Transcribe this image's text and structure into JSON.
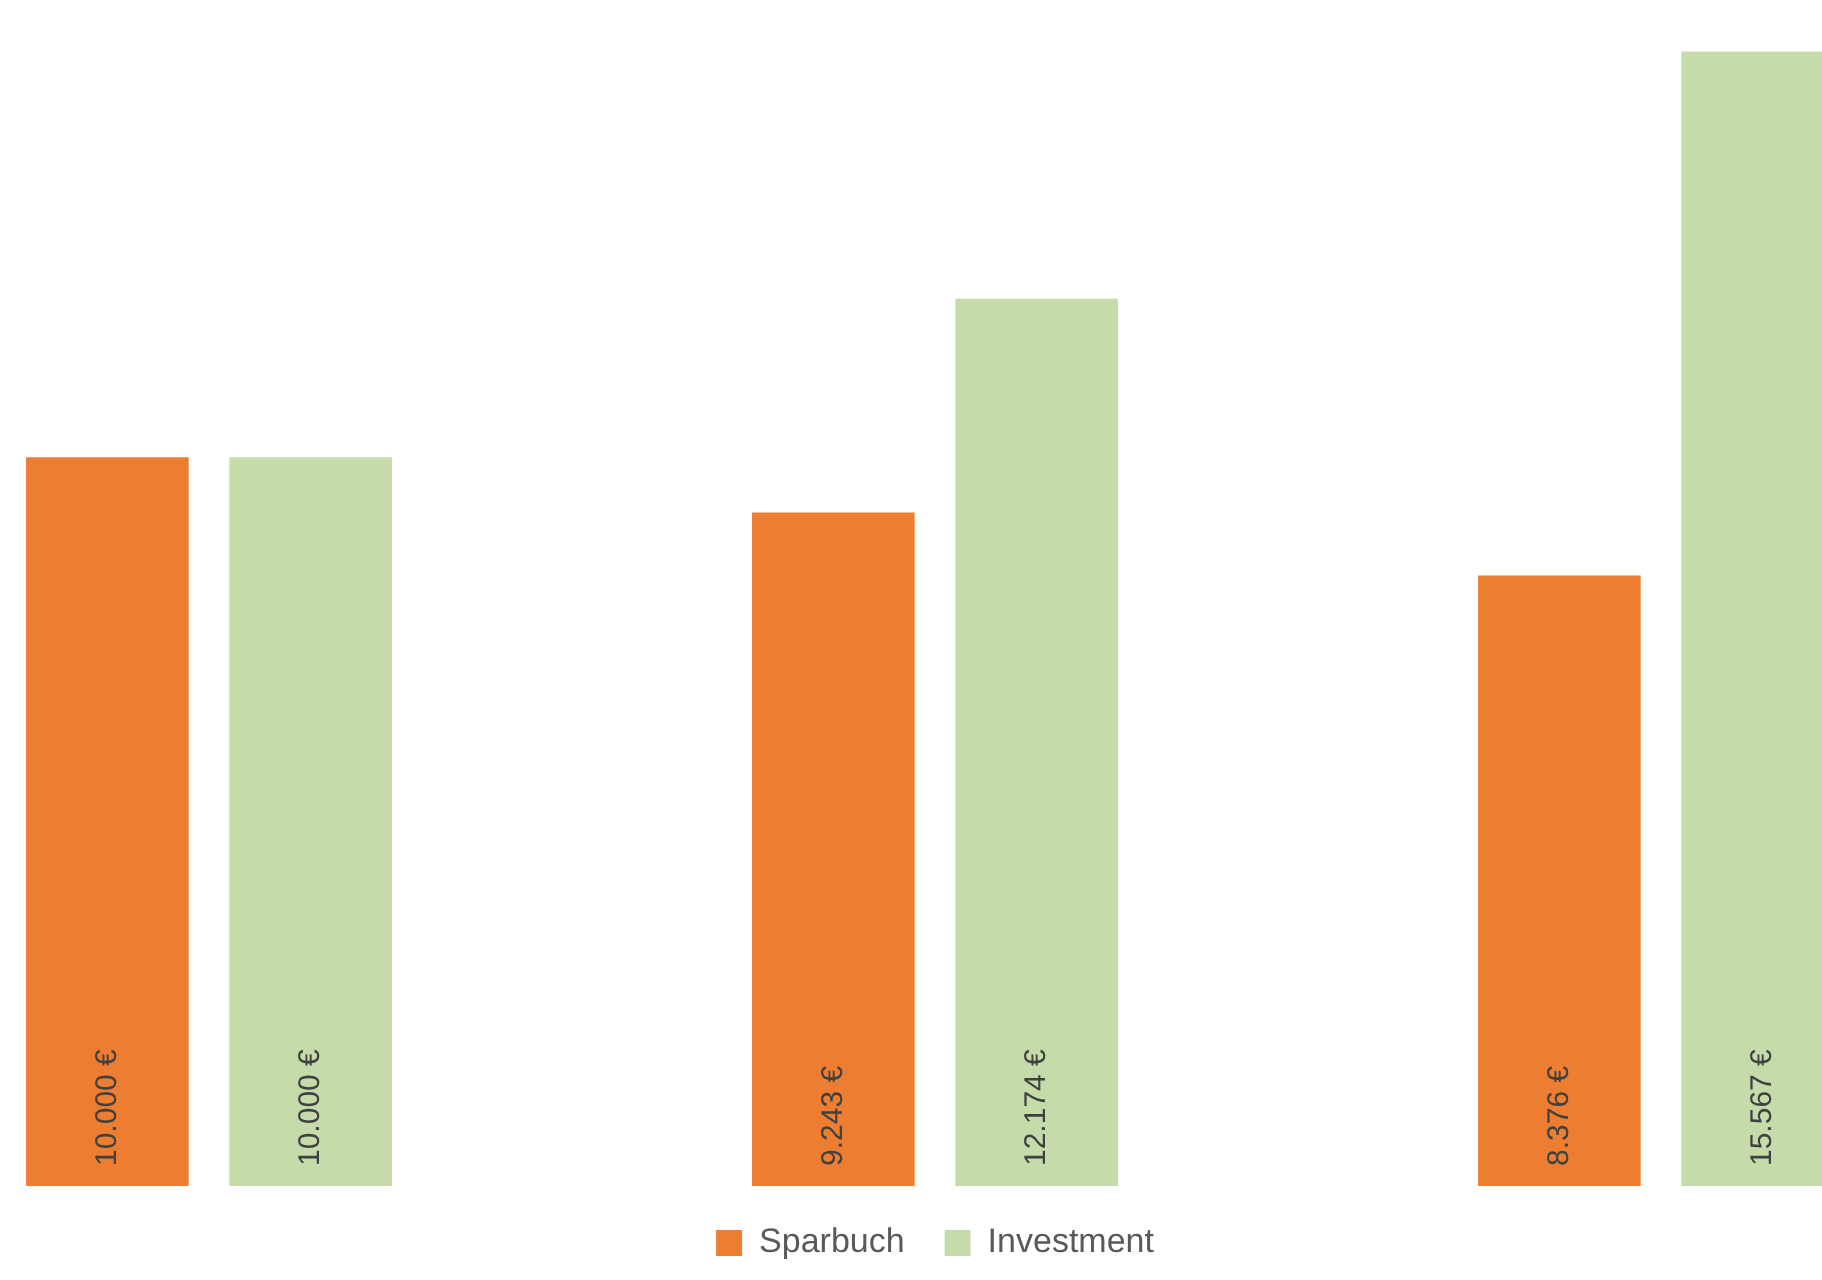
{
  "chart_data": {
    "type": "bar",
    "categories": [
      null,
      null,
      null
    ],
    "series": [
      {
        "name": "Sparbuch",
        "color": "#ed7d31",
        "values": [
          10000,
          9243,
          8376
        ],
        "value_labels": [
          "10.000 €",
          "9.243 €",
          "8.376 €"
        ]
      },
      {
        "name": "Investment",
        "color": "#c5dcaa",
        "values": [
          10000,
          12174,
          15567
        ],
        "value_labels": [
          "10.000 €",
          "12.174 €",
          "15.567 €"
        ]
      }
    ],
    "legend": "bottom"
  }
}
